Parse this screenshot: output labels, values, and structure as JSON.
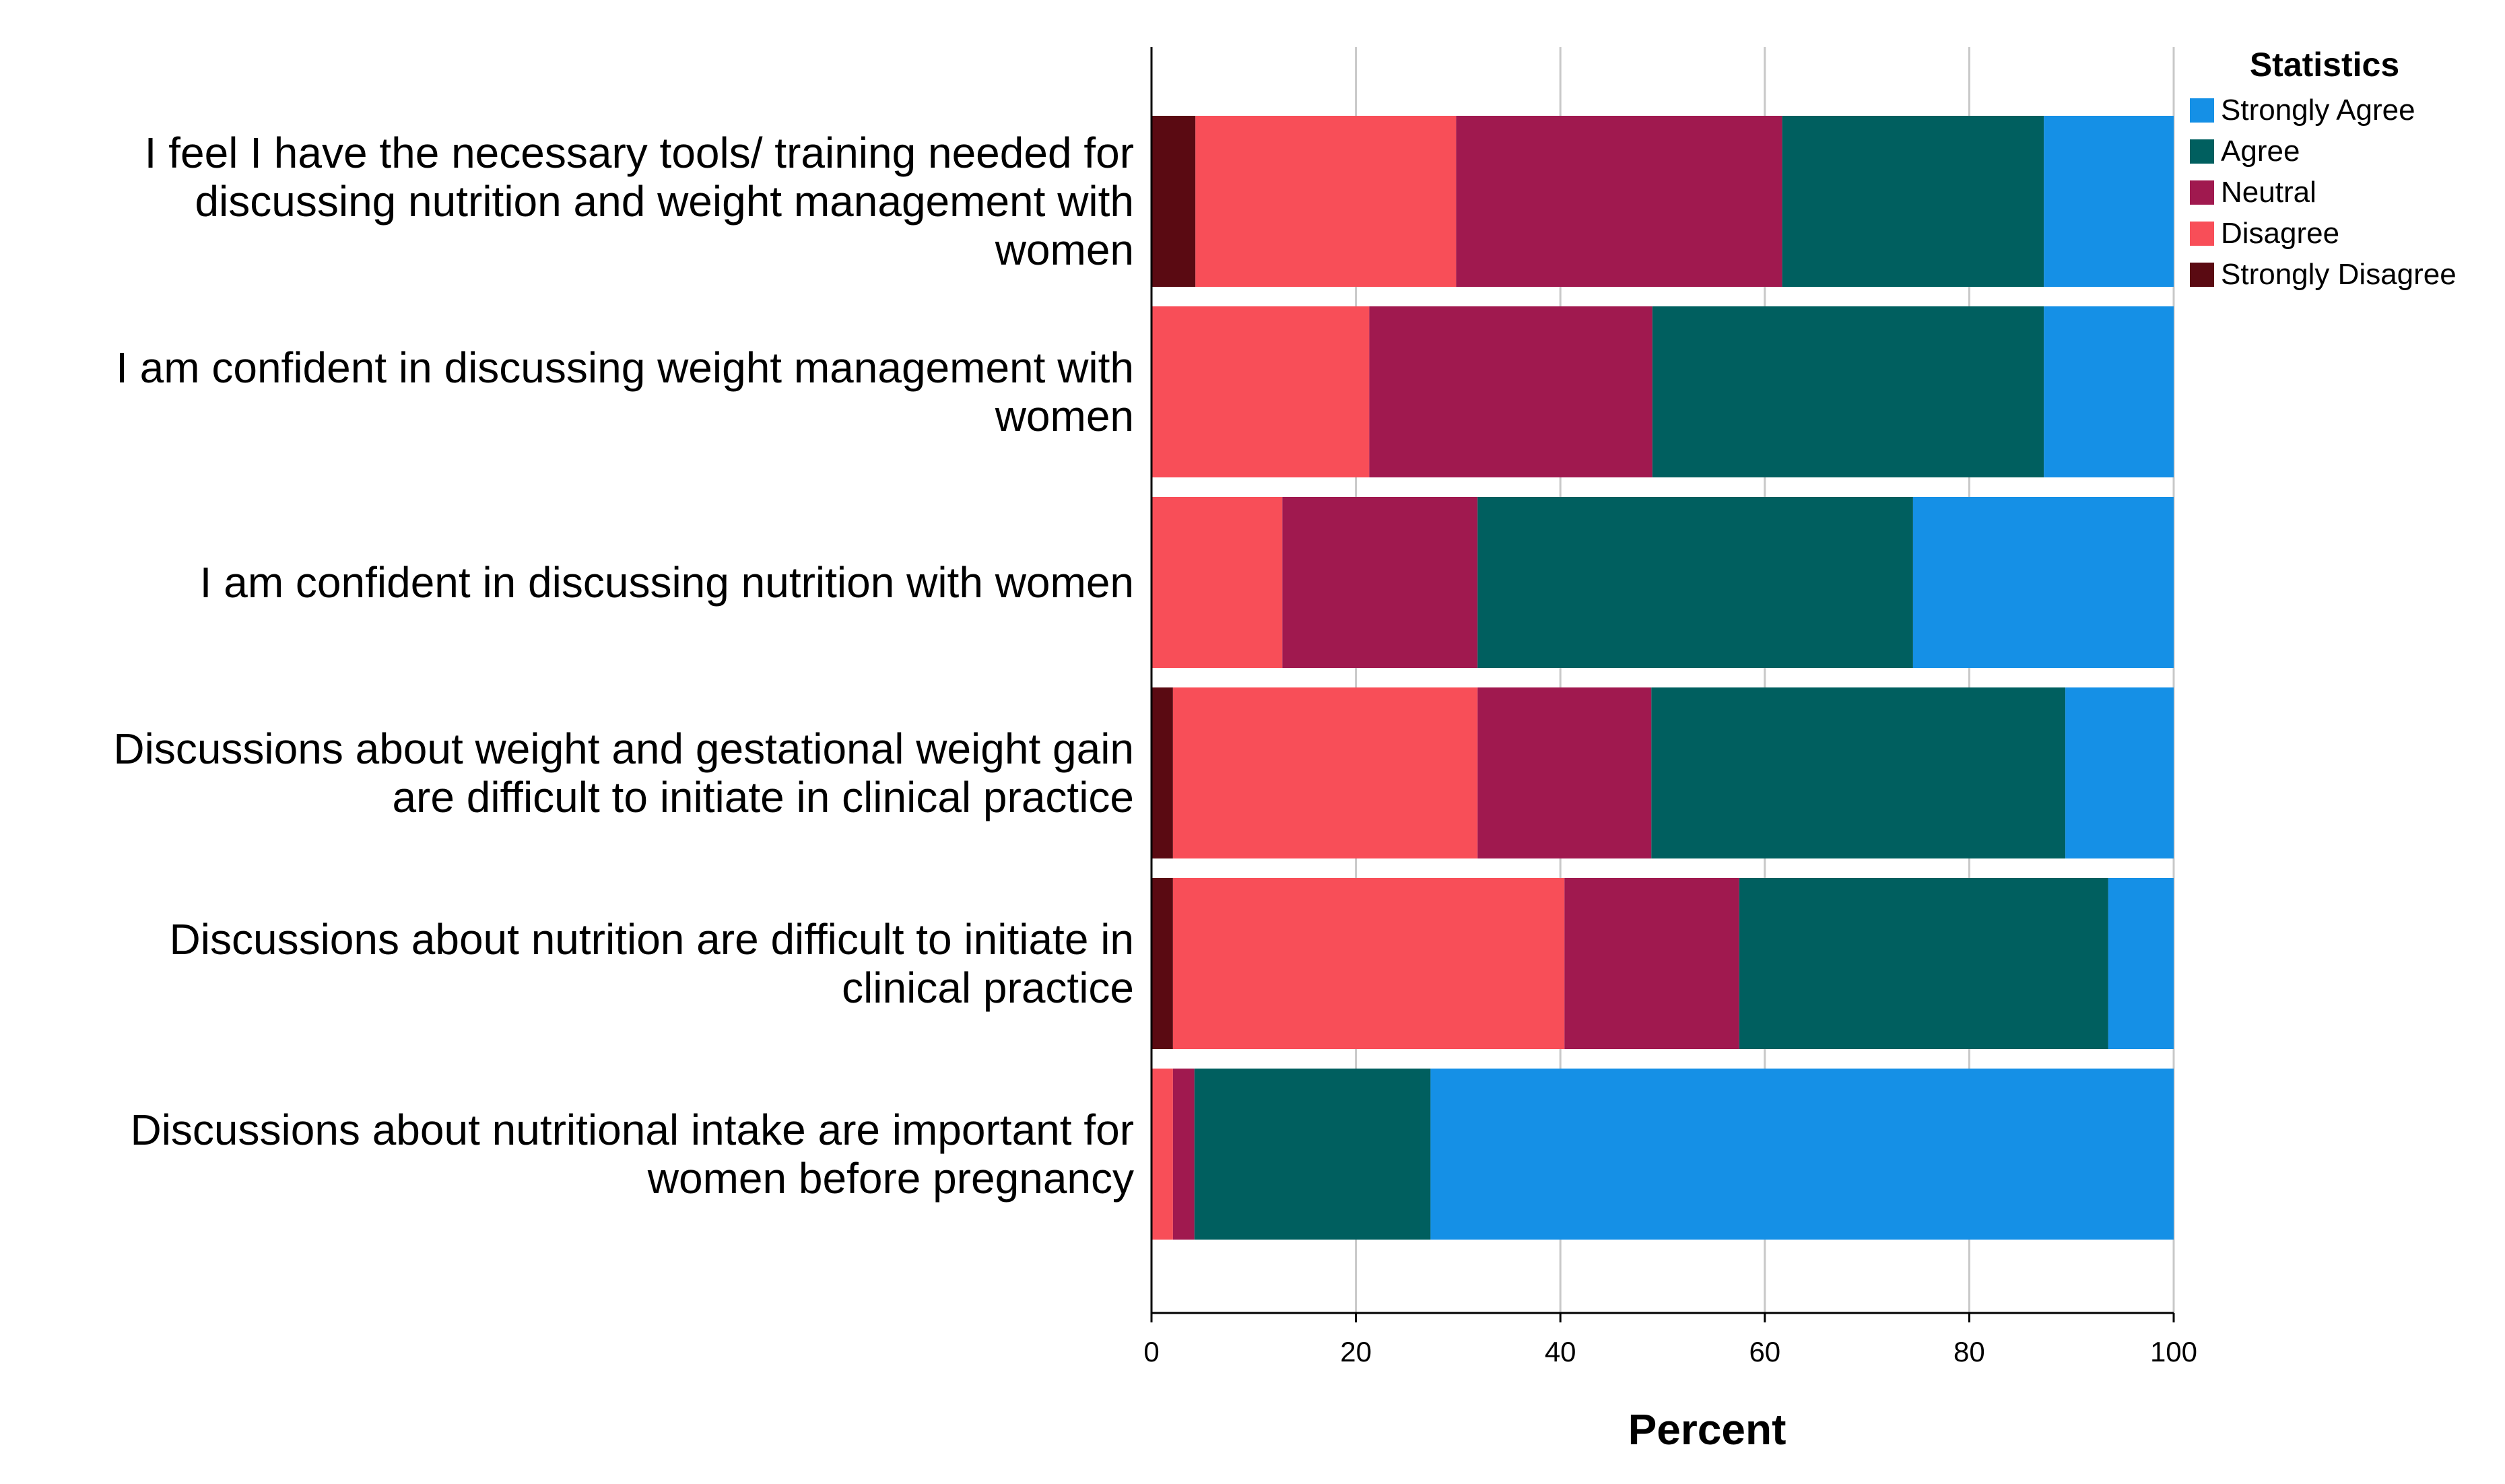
{
  "chart_data": {
    "type": "bar",
    "orientation": "horizontal",
    "stacked": true,
    "categories": [
      [
        "I feel I have the necessary tools/ training needed for",
        "discussing nutrition and weight management with",
        "women"
      ],
      [
        "I am confident in discussing weight management with",
        "women"
      ],
      [
        "I am confident in discussing nutrition with women"
      ],
      [
        "Discussions about weight and gestational weight gain",
        "are difficult to initiate in clinical practice"
      ],
      [
        "Discussions about nutrition are difficult to initiate in",
        "clinical practice"
      ],
      [
        "Discussions about nutritional intake are important for",
        "women before pregnancy"
      ]
    ],
    "series": [
      {
        "name": "Strongly Disagree",
        "color": "#5a0a12",
        "values": [
          4.3,
          0,
          0,
          2.1,
          2.1,
          0
        ]
      },
      {
        "name": "Disagree",
        "color": "#f84e58",
        "values": [
          25.5,
          21.3,
          12.8,
          29.8,
          38.3,
          2.1
        ]
      },
      {
        "name": "Neutral",
        "color": "#a0194f",
        "values": [
          31.9,
          27.7,
          19.1,
          17.0,
          17.1,
          2.1
        ]
      },
      {
        "name": "Agree",
        "color": "#005f5f",
        "values": [
          25.6,
          38.3,
          42.6,
          40.5,
          36.1,
          23.1
        ]
      },
      {
        "name": "Strongly Agree",
        "color": "#1590e6",
        "values": [
          12.7,
          12.7,
          25.5,
          10.6,
          6.4,
          72.7
        ]
      }
    ],
    "xlabel": "Percent",
    "ylabel": "",
    "xlim": [
      0,
      100
    ],
    "xticks": [
      0,
      20,
      40,
      60,
      80,
      100
    ],
    "xtick_labels": [
      "0",
      "20",
      "40",
      "60",
      "80",
      "100"
    ],
    "grid": true,
    "legend": {
      "title": "Statistics",
      "position": "top-right",
      "order": [
        "Strongly Agree",
        "Agree",
        "Neutral",
        "Disagree",
        "Strongly Disagree"
      ]
    }
  }
}
